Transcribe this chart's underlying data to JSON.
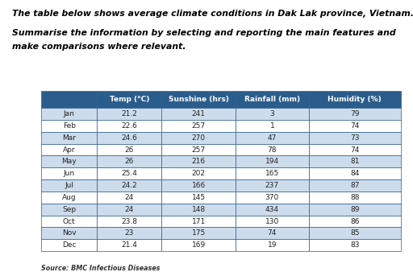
{
  "title_line1": "The table below shows average climate conditions in Dak Lak province, Vietnam.",
  "title_line2_1": "Summarise the information by selecting and reporting the main features and",
  "title_line2_2": "make comparisons where relevant.",
  "source": "Source: BMC Infectious Diseases",
  "headers": [
    "",
    "Temp (°C)",
    "Sunshine (hrs)",
    "Rainfall (mm)",
    "Humidity (%)"
  ],
  "months": [
    "Jan",
    "Feb",
    "Mar",
    "Apr",
    "May",
    "Jun",
    "Jul",
    "Aug",
    "Sep",
    "Oct",
    "Nov",
    "Dec"
  ],
  "temp": [
    "21.2",
    "22.6",
    "24.6",
    "26",
    "26",
    "25.4",
    "24.2",
    "24",
    "24",
    "23.8",
    "23",
    "21.4"
  ],
  "sunshine": [
    "241",
    "257",
    "270",
    "257",
    "216",
    "202",
    "166",
    "145",
    "148",
    "171",
    "175",
    "169"
  ],
  "rainfall": [
    "3",
    "1",
    "47",
    "78",
    "194",
    "165",
    "237",
    "370",
    "434",
    "130",
    "74",
    "19"
  ],
  "humidity": [
    "79",
    "74",
    "73",
    "74",
    "81",
    "84",
    "87",
    "88",
    "89",
    "86",
    "85",
    "83"
  ],
  "header_bg": "#2B5D8C",
  "header_fg": "#FFFFFF",
  "row_bg_light": "#CDDCEC",
  "row_bg_white": "#FFFFFF",
  "border_color": "#2B5D8C",
  "text_color": "#222222",
  "fig_width": 5.12,
  "fig_height": 3.43,
  "dpi": 100
}
